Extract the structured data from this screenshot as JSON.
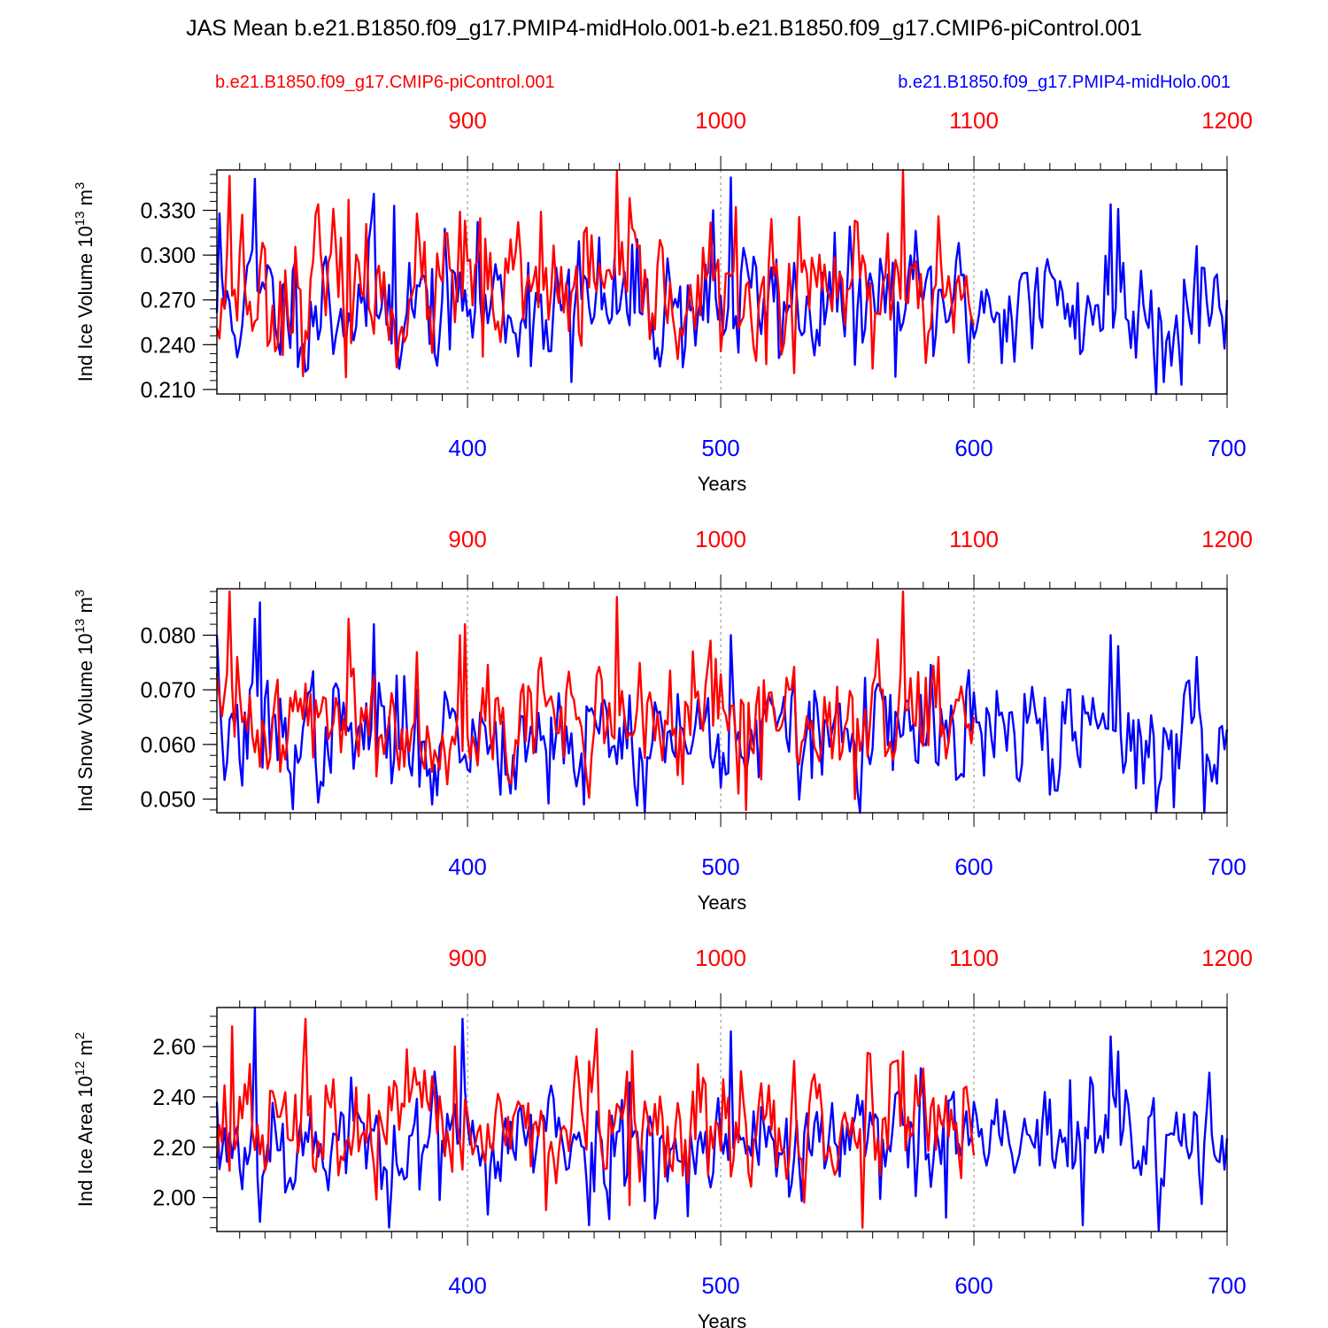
{
  "title": "JAS Mean b.e21.B1850.f09_g17.PMIP4-midHolo.001-b.e21.B1850.f09_g17.CMIP6-piControl.001",
  "legend": {
    "red": "b.e21.B1850.f09_g17.CMIP6-piControl.001",
    "blue": "b.e21.B1850.f09_g17.PMIP4-midHolo.001"
  },
  "colors": {
    "red": "#ff0000",
    "blue": "#0000ff",
    "axis": "#000000"
  },
  "chart_data": [
    {
      "type": "line",
      "ylabel": "Ind Ice Volume 10",
      "ylabel_exp": "13",
      "ylabel_unit": " m",
      "ylabel_unit_exp": "3",
      "xlabel": "Years",
      "bottom_axis": {
        "range": [
          301,
          700
        ],
        "ticks": [
          400,
          500,
          600,
          700
        ],
        "labels": [
          "400",
          "500",
          "600",
          "700"
        ]
      },
      "top_axis": {
        "range": [
          801,
          1200
        ],
        "ticks": [
          900,
          1000,
          1100,
          1200
        ],
        "labels": [
          "900",
          "1000",
          "1100",
          "1200"
        ]
      },
      "ylim": [
        0.207,
        0.357
      ],
      "yticks": [
        0.21,
        0.24,
        0.27,
        0.3,
        0.33
      ],
      "ytick_labels": [
        "0.210",
        "0.240",
        "0.270",
        "0.300",
        "0.330"
      ],
      "series": [
        {
          "name": "b.e21.B1850.f09_g17.PMIP4-midHolo.001",
          "color": "blue",
          "x_start": 301,
          "stats": {
            "mean": 0.267,
            "sd": 0.022,
            "seed": 11
          },
          "peaks": [
            [
              302,
              0.328
            ],
            [
              316,
              0.351
            ],
            [
              363,
              0.341
            ],
            [
              371,
              0.333
            ],
            [
              497,
              0.33
            ],
            [
              504,
              0.352
            ],
            [
              344,
              0.299
            ],
            [
              545,
              0.315
            ],
            [
              654,
              0.334
            ],
            [
              657,
              0.331
            ],
            [
              688,
              0.306
            ],
            [
              441,
              0.215
            ],
            [
              672,
              0.207
            ],
            [
              388,
              0.226
            ],
            [
              675,
              0.215
            ],
            [
              678,
              0.226
            ]
          ],
          "x_end": 700
        },
        {
          "name": "b.e21.B1850.f09_g17.CMIP6-piControl.001",
          "color": "red",
          "x_start": 801,
          "stats": {
            "mean": 0.274,
            "sd": 0.022,
            "seed": 23
          },
          "peaks": [
            [
              806,
              0.353
            ],
            [
              811,
              0.327
            ],
            [
              841,
              0.334
            ],
            [
              853,
              0.337
            ],
            [
              897,
              0.329
            ],
            [
              899,
              0.323
            ],
            [
              929,
              0.329
            ],
            [
              959,
              0.356
            ],
            [
              946,
              0.315
            ],
            [
              1072,
              0.357
            ],
            [
              1086,
              0.326
            ],
            [
              906,
              0.232
            ],
            [
              1029,
              0.221
            ],
            [
              1018,
              0.227
            ],
            [
              1060,
              0.224
            ]
          ],
          "x_end": 1100
        }
      ]
    },
    {
      "type": "line",
      "ylabel": "Ind Snow Volume 10",
      "ylabel_exp": "13",
      "ylabel_unit": " m",
      "ylabel_unit_exp": "3",
      "xlabel": "Years",
      "bottom_axis": {
        "range": [
          301,
          700
        ],
        "ticks": [
          400,
          500,
          600,
          700
        ],
        "labels": [
          "400",
          "500",
          "600",
          "700"
        ]
      },
      "top_axis": {
        "range": [
          801,
          1200
        ],
        "ticks": [
          900,
          1000,
          1100,
          1200
        ],
        "labels": [
          "900",
          "1000",
          "1100",
          "1200"
        ]
      },
      "ylim": [
        0.0475,
        0.0885
      ],
      "yticks": [
        0.05,
        0.06,
        0.07,
        0.08
      ],
      "ytick_labels": [
        "0.050",
        "0.060",
        "0.070",
        "0.080"
      ],
      "series": [
        {
          "name": "b.e21.B1850.f09_g17.PMIP4-midHolo.001",
          "color": "blue",
          "x_start": 301,
          "stats": {
            "mean": 0.0615,
            "sd": 0.0055,
            "seed": 37
          },
          "peaks": [
            [
              301,
              0.08
            ],
            [
              316,
              0.083
            ],
            [
              318,
              0.086
            ],
            [
              363,
              0.082
            ],
            [
              504,
              0.08
            ],
            [
              654,
              0.08
            ],
            [
              657,
              0.078
            ],
            [
              688,
              0.076
            ],
            [
              386,
              0.049
            ],
            [
              446,
              0.049
            ],
            [
              672,
              0.0475
            ],
            [
              679,
              0.0485
            ]
          ],
          "x_end": 700
        },
        {
          "name": "b.e21.B1850.f09_g17.CMIP6-piControl.001",
          "color": "red",
          "x_start": 801,
          "stats": {
            "mean": 0.0645,
            "sd": 0.0055,
            "seed": 41
          },
          "peaks": [
            [
              806,
              0.088
            ],
            [
              809,
              0.076
            ],
            [
              853,
              0.083
            ],
            [
              897,
              0.08
            ],
            [
              899,
              0.082
            ],
            [
              959,
              0.087
            ],
            [
              996,
              0.079
            ],
            [
              1072,
              0.088
            ],
            [
              1010,
              0.048
            ],
            [
              1007,
              0.051
            ],
            [
              1053,
              0.05
            ],
            [
              1086,
              0.076
            ]
          ],
          "x_end": 1100
        }
      ]
    },
    {
      "type": "line",
      "ylabel": "Ind Ice Area 10",
      "ylabel_exp": "12",
      "ylabel_unit": " m",
      "ylabel_unit_exp": "2",
      "xlabel": "Years",
      "bottom_axis": {
        "range": [
          301,
          700
        ],
        "ticks": [
          400,
          500,
          600,
          700
        ],
        "labels": [
          "400",
          "500",
          "600",
          "700"
        ]
      },
      "top_axis": {
        "range": [
          801,
          1200
        ],
        "ticks": [
          900,
          1000,
          1100,
          1200
        ],
        "labels": [
          "900",
          "1000",
          "1100",
          "1200"
        ]
      },
      "ylim": [
        1.865,
        2.755
      ],
      "yticks": [
        2.0,
        2.2,
        2.4,
        2.6
      ],
      "ytick_labels": [
        "2.00",
        "2.20",
        "2.40",
        "2.60"
      ],
      "series": [
        {
          "name": "b.e21.B1850.f09_g17.PMIP4-midHolo.001",
          "color": "blue",
          "x_start": 301,
          "stats": {
            "mean": 2.22,
            "sd": 0.12,
            "seed": 53
          },
          "peaks": [
            [
              316,
              2.755
            ],
            [
              398,
              2.71
            ],
            [
              504,
              2.66
            ],
            [
              654,
              2.64
            ],
            [
              657,
              2.58
            ],
            [
              448,
              1.89
            ],
            [
              643,
              1.89
            ],
            [
              673,
              1.87
            ],
            [
              389,
              1.99
            ],
            [
              589,
              1.92
            ]
          ],
          "x_end": 700
        },
        {
          "name": "b.e21.B1850.f09_g17.CMIP6-piControl.001",
          "color": "red",
          "x_start": 801,
          "stats": {
            "mean": 2.27,
            "sd": 0.12,
            "seed": 67
          },
          "peaks": [
            [
              807,
              2.68
            ],
            [
              836,
              2.71
            ],
            [
              895,
              2.6
            ],
            [
              951,
              2.67
            ],
            [
              1072,
              2.58
            ],
            [
              1056,
              1.88
            ],
            [
              1033,
              1.98
            ],
            [
              964,
              1.97
            ]
          ],
          "x_end": 1100
        }
      ]
    }
  ]
}
